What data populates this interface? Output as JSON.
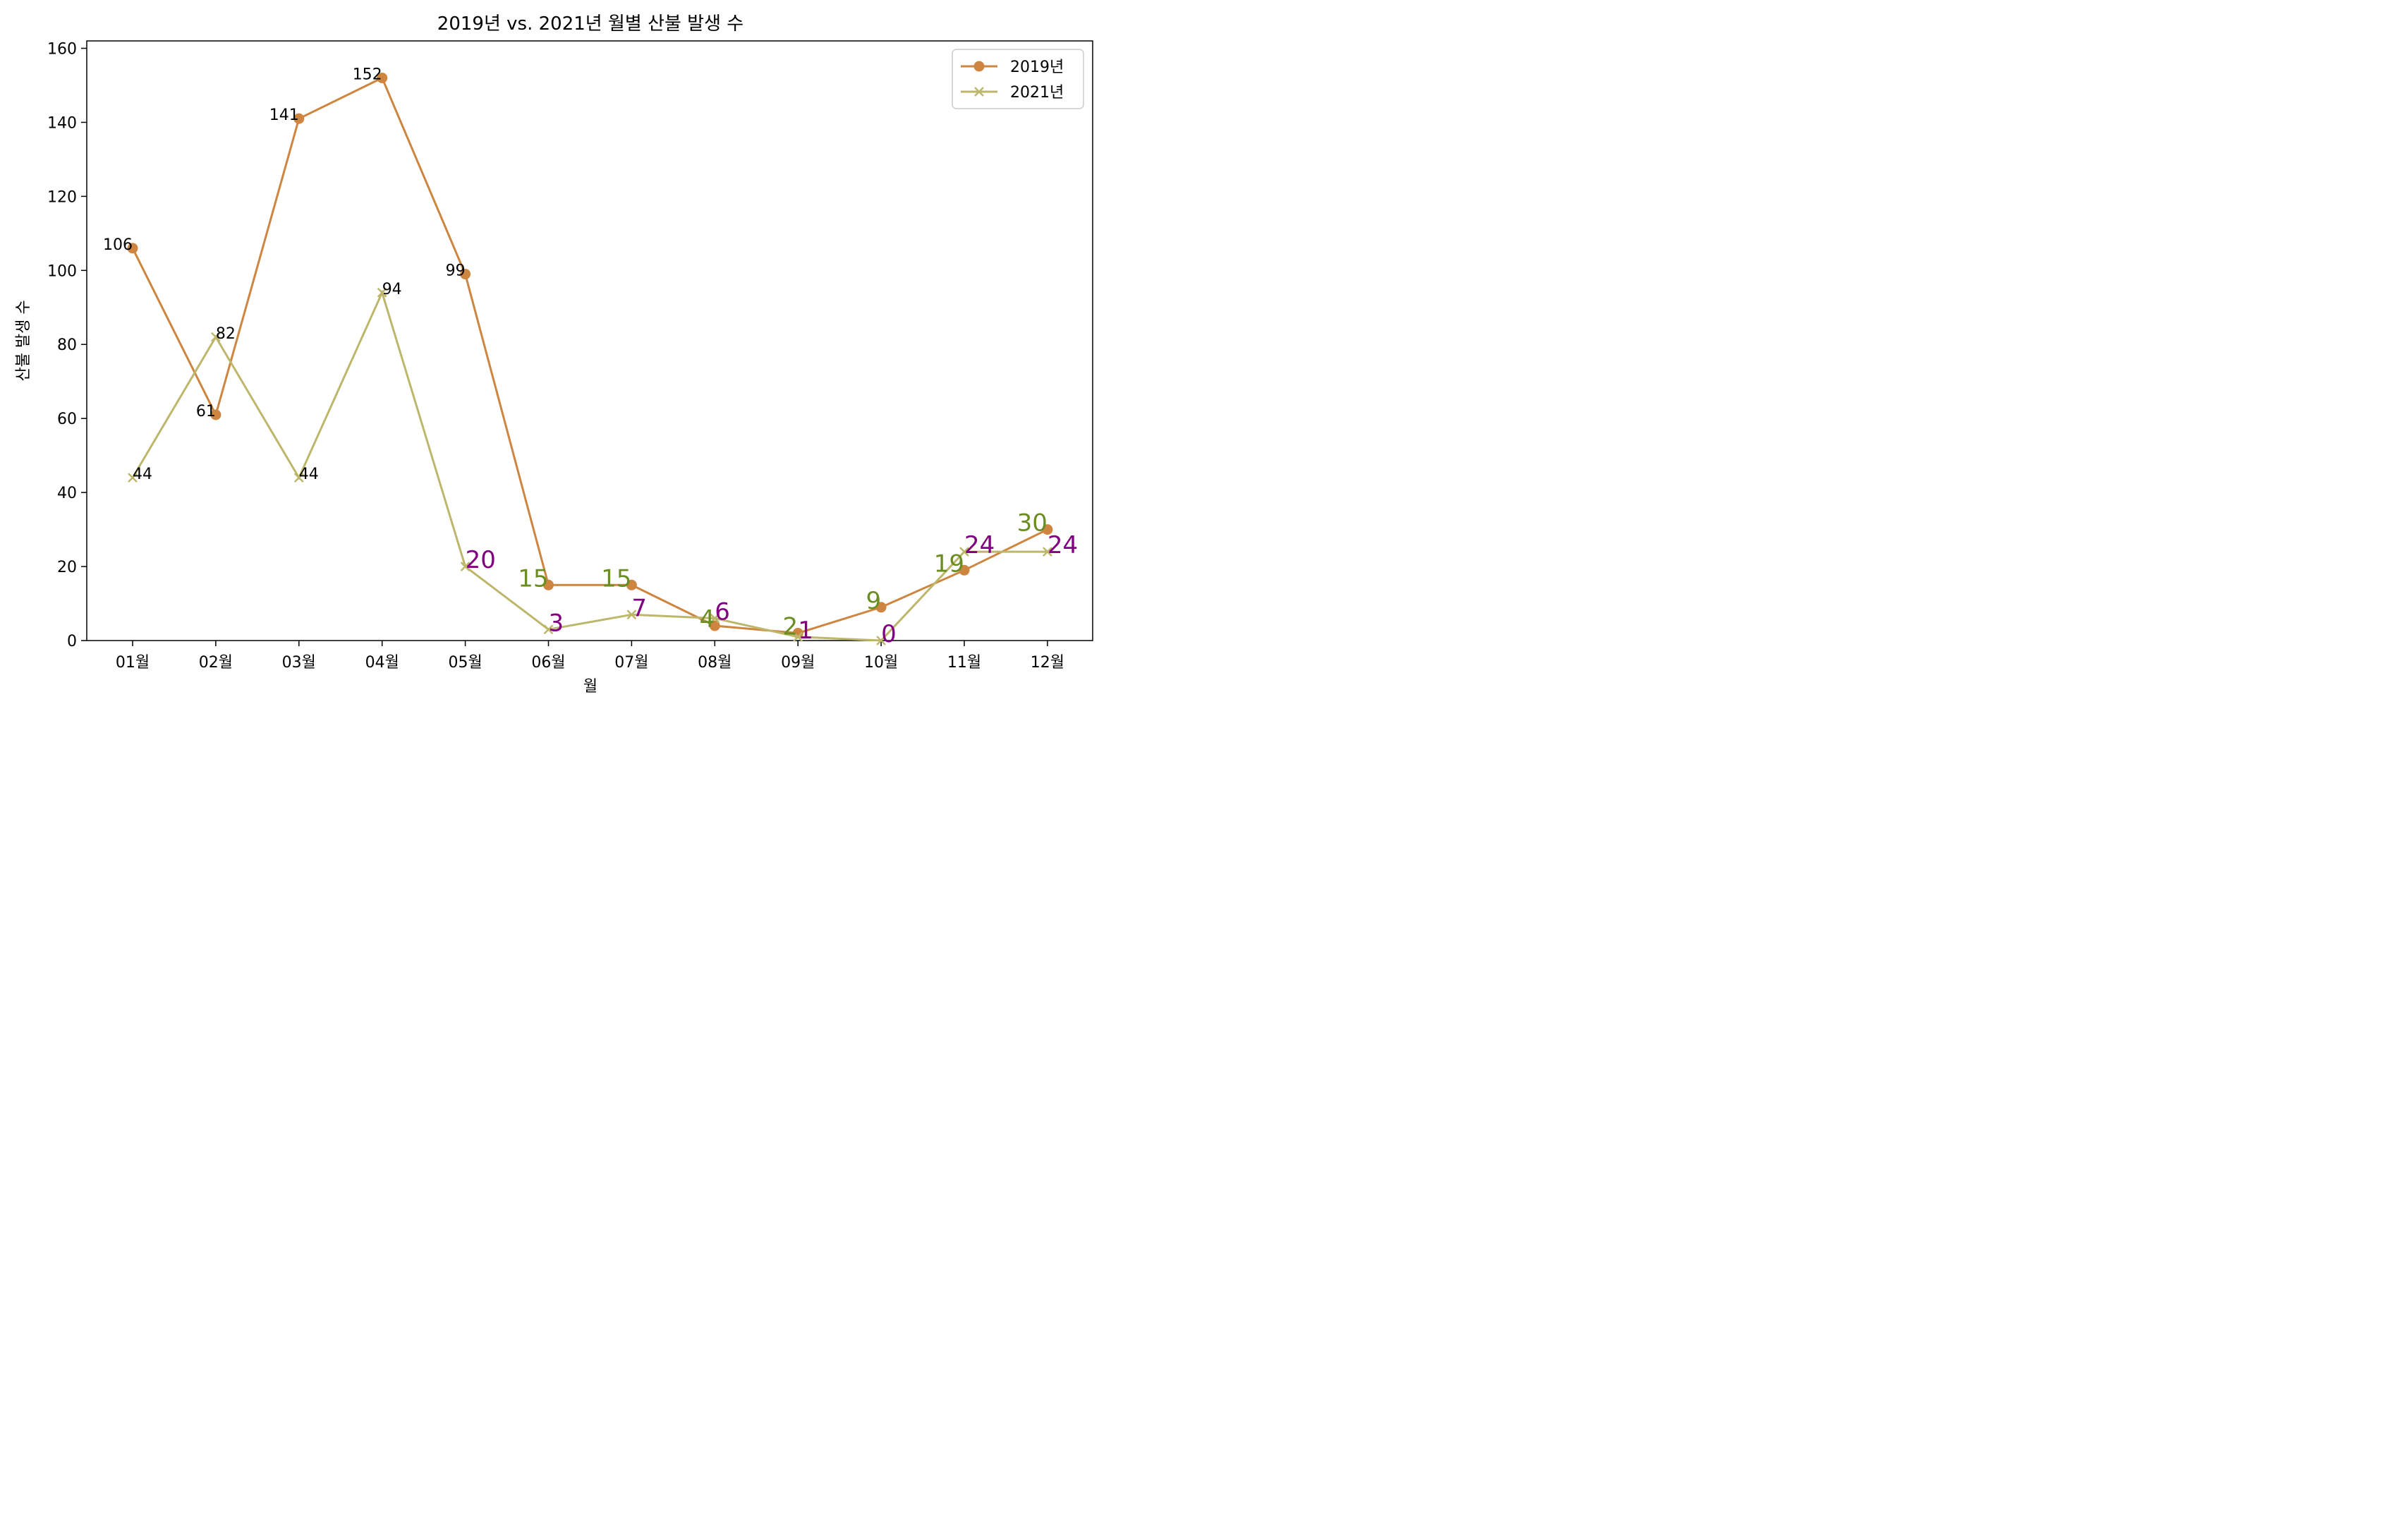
{
  "chart_data": {
    "type": "line",
    "title": "2019년 vs. 2021년 월별 산불 발생 수",
    "xlabel": "월",
    "ylabel": "산불 발생 수",
    "categories": [
      "01월",
      "02월",
      "03월",
      "04월",
      "05월",
      "06월",
      "07월",
      "08월",
      "09월",
      "10월",
      "11월",
      "12월"
    ],
    "ylim": [
      0,
      162
    ],
    "yticks": [
      0,
      20,
      40,
      60,
      80,
      100,
      120,
      140,
      160
    ],
    "grid": false,
    "legend_position": "top-right",
    "series": [
      {
        "name": "2019년",
        "values": [
          106,
          61,
          141,
          152,
          99,
          15,
          15,
          4,
          2,
          9,
          19,
          30
        ],
        "color": "#cd853f",
        "marker": "circle",
        "label_color_high": "#000000",
        "label_color_low": "#6b8e23"
      },
      {
        "name": "2021년",
        "values": [
          44,
          82,
          44,
          94,
          20,
          3,
          7,
          6,
          1,
          0,
          24,
          24
        ],
        "color": "#bdb76b",
        "marker": "x",
        "label_color_high": "#000000",
        "label_color_low": "#800080"
      }
    ]
  }
}
